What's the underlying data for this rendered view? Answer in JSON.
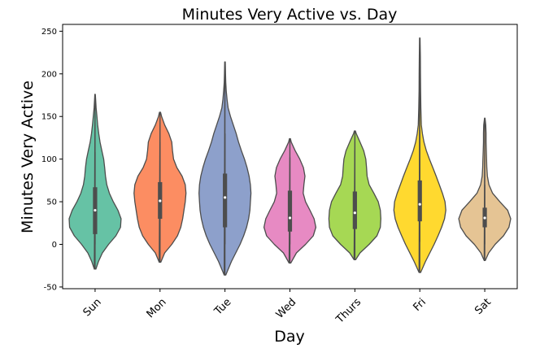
{
  "chart_data": {
    "type": "violin",
    "title": "Minutes Very Active vs. Day",
    "xlabel": "Day",
    "ylabel": "Minutes Very Active",
    "ylim": [
      -52,
      258
    ],
    "yticks": [
      -50,
      0,
      50,
      100,
      150,
      200,
      250
    ],
    "grid": false,
    "legend": "none",
    "categories": [
      "Sun",
      "Mon",
      "Tue",
      "Wed",
      "Thurs",
      "Fri",
      "Sat"
    ],
    "colors": [
      "#66c2a5",
      "#fc8d62",
      "#8da0cb",
      "#e78ac3",
      "#a6d854",
      "#ffd92f",
      "#e5c494"
    ],
    "edge_color": "#4d4d4d",
    "violins": [
      {
        "min_whisker": 0,
        "q1": 12,
        "median": 40,
        "q3": 67,
        "max_whisker": 108,
        "profile": [
          [
            -29,
            0.03
          ],
          [
            -20,
            0.13
          ],
          [
            -10,
            0.28
          ],
          [
            0,
            0.52
          ],
          [
            10,
            0.8
          ],
          [
            20,
            0.98
          ],
          [
            30,
            1.0
          ],
          [
            40,
            0.88
          ],
          [
            50,
            0.7
          ],
          [
            60,
            0.55
          ],
          [
            70,
            0.45
          ],
          [
            80,
            0.4
          ],
          [
            90,
            0.37
          ],
          [
            100,
            0.33
          ],
          [
            110,
            0.26
          ],
          [
            120,
            0.19
          ],
          [
            130,
            0.14
          ],
          [
            140,
            0.1
          ],
          [
            150,
            0.07
          ],
          [
            160,
            0.04
          ],
          [
            170,
            0.02
          ],
          [
            176,
            0.01
          ]
        ]
      },
      {
        "min_whisker": 5,
        "q1": 30,
        "median": 51,
        "q3": 73,
        "max_whisker": 120,
        "profile": [
          [
            -21,
            0.03
          ],
          [
            -10,
            0.18
          ],
          [
            0,
            0.45
          ],
          [
            10,
            0.67
          ],
          [
            20,
            0.8
          ],
          [
            30,
            0.87
          ],
          [
            40,
            0.92
          ],
          [
            50,
            0.97
          ],
          [
            60,
            1.0
          ],
          [
            70,
            0.97
          ],
          [
            80,
            0.85
          ],
          [
            90,
            0.65
          ],
          [
            100,
            0.52
          ],
          [
            110,
            0.48
          ],
          [
            120,
            0.45
          ],
          [
            130,
            0.34
          ],
          [
            140,
            0.18
          ],
          [
            150,
            0.06
          ],
          [
            155,
            0.02
          ]
        ]
      },
      {
        "min_whisker": 0,
        "q1": 20,
        "median": 55,
        "q3": 83,
        "max_whisker": 130,
        "profile": [
          [
            -36,
            0.03
          ],
          [
            -20,
            0.25
          ],
          [
            0,
            0.58
          ],
          [
            10,
            0.72
          ],
          [
            20,
            0.83
          ],
          [
            30,
            0.91
          ],
          [
            40,
            0.96
          ],
          [
            50,
            0.98
          ],
          [
            60,
            1.0
          ],
          [
            70,
            0.98
          ],
          [
            80,
            0.93
          ],
          [
            90,
            0.85
          ],
          [
            100,
            0.75
          ],
          [
            110,
            0.63
          ],
          [
            120,
            0.52
          ],
          [
            130,
            0.43
          ],
          [
            140,
            0.32
          ],
          [
            150,
            0.21
          ],
          [
            160,
            0.12
          ],
          [
            170,
            0.08
          ],
          [
            180,
            0.05
          ],
          [
            190,
            0.03
          ],
          [
            200,
            0.02
          ],
          [
            214,
            0.01
          ]
        ]
      },
      {
        "min_whisker": 0,
        "q1": 15,
        "median": 31,
        "q3": 63,
        "max_whisker": 102,
        "profile": [
          [
            -22,
            0.03
          ],
          [
            -10,
            0.25
          ],
          [
            0,
            0.6
          ],
          [
            10,
            0.9
          ],
          [
            20,
            1.0
          ],
          [
            30,
            0.93
          ],
          [
            40,
            0.77
          ],
          [
            50,
            0.6
          ],
          [
            60,
            0.51
          ],
          [
            70,
            0.54
          ],
          [
            80,
            0.58
          ],
          [
            90,
            0.52
          ],
          [
            100,
            0.38
          ],
          [
            110,
            0.2
          ],
          [
            120,
            0.05
          ],
          [
            124,
            0.02
          ]
        ]
      },
      {
        "min_whisker": 0,
        "q1": 18,
        "median": 37,
        "q3": 62,
        "max_whisker": 110,
        "profile": [
          [
            -18,
            0.03
          ],
          [
            -10,
            0.2
          ],
          [
            0,
            0.55
          ],
          [
            10,
            0.85
          ],
          [
            20,
            0.98
          ],
          [
            30,
            1.0
          ],
          [
            40,
            0.98
          ],
          [
            50,
            0.9
          ],
          [
            60,
            0.73
          ],
          [
            70,
            0.55
          ],
          [
            80,
            0.47
          ],
          [
            90,
            0.45
          ],
          [
            100,
            0.42
          ],
          [
            110,
            0.34
          ],
          [
            120,
            0.2
          ],
          [
            130,
            0.05
          ],
          [
            133,
            0.02
          ]
        ]
      },
      {
        "min_whisker": 3,
        "q1": 27,
        "median": 47,
        "q3": 75,
        "max_whisker": 134,
        "profile": [
          [
            -33,
            0.03
          ],
          [
            -20,
            0.22
          ],
          [
            0,
            0.55
          ],
          [
            10,
            0.7
          ],
          [
            20,
            0.84
          ],
          [
            30,
            0.95
          ],
          [
            40,
            1.0
          ],
          [
            50,
            0.97
          ],
          [
            60,
            0.87
          ],
          [
            70,
            0.75
          ],
          [
            80,
            0.63
          ],
          [
            90,
            0.5
          ],
          [
            100,
            0.37
          ],
          [
            110,
            0.25
          ],
          [
            120,
            0.16
          ],
          [
            130,
            0.1
          ],
          [
            140,
            0.06
          ],
          [
            160,
            0.04
          ],
          [
            180,
            0.03
          ],
          [
            200,
            0.025
          ],
          [
            220,
            0.02
          ],
          [
            242,
            0.01
          ]
        ]
      },
      {
        "min_whisker": 0,
        "q1": 20,
        "median": 31,
        "q3": 43,
        "max_whisker": 70,
        "profile": [
          [
            -19,
            0.02
          ],
          [
            -10,
            0.15
          ],
          [
            0,
            0.4
          ],
          [
            10,
            0.72
          ],
          [
            20,
            0.93
          ],
          [
            30,
            1.0
          ],
          [
            40,
            0.88
          ],
          [
            50,
            0.58
          ],
          [
            60,
            0.3
          ],
          [
            70,
            0.16
          ],
          [
            80,
            0.1
          ],
          [
            90,
            0.08
          ],
          [
            100,
            0.07
          ],
          [
            110,
            0.06
          ],
          [
            120,
            0.05
          ],
          [
            130,
            0.05
          ],
          [
            140,
            0.04
          ],
          [
            148,
            0.01
          ]
        ]
      }
    ]
  }
}
